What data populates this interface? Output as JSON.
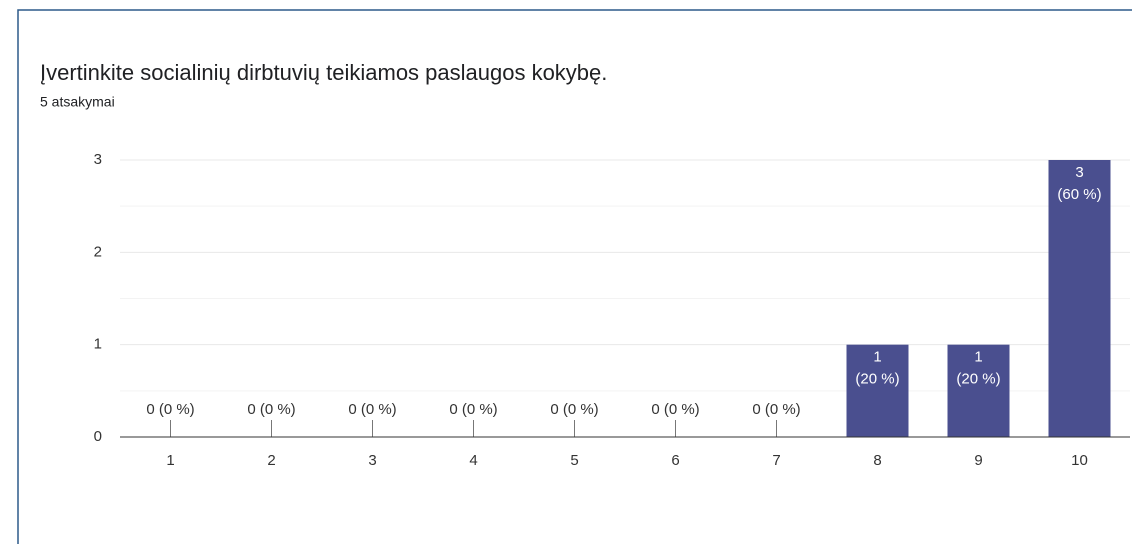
{
  "chart_data": {
    "type": "bar",
    "title": "Įvertinkite socialinių dirbtuvių teikiamos paslaugos kokybę.",
    "subtitle": "5 atsakymai",
    "categories": [
      "1",
      "2",
      "3",
      "4",
      "5",
      "6",
      "7",
      "8",
      "9",
      "10"
    ],
    "values": [
      0,
      0,
      0,
      0,
      0,
      0,
      0,
      1,
      1,
      3
    ],
    "value_labels": [
      "0 (0 %)",
      "0 (0 %)",
      "0 (0 %)",
      "0 (0 %)",
      "0 (0 %)",
      "0 (0 %)",
      "0 (0 %)",
      "1 (20 %)",
      "1 (20 %)",
      "3 (60 %)"
    ],
    "color": "#4a4f8f",
    "ylim": [
      0,
      3
    ],
    "yticks": [
      0,
      1,
      2,
      3
    ],
    "grid": true
  }
}
